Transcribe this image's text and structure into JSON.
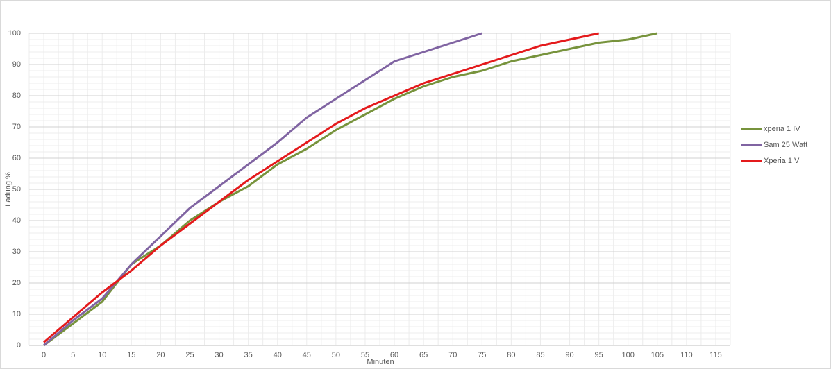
{
  "chart_data": {
    "type": "line",
    "x_label": "Minuten",
    "y_label": "Ladung %",
    "categories": [
      "0",
      "5",
      "10",
      "15",
      "20",
      "25",
      "30",
      "35",
      "40",
      "45",
      "50",
      "55",
      "60",
      "65",
      "70",
      "75",
      "80",
      "85",
      "90",
      "95",
      "100",
      "105",
      "110",
      "115"
    ],
    "series": [
      {
        "name": "xperia 1 IV",
        "color": "#77933c",
        "values": [
          0,
          7,
          14,
          26,
          32,
          40,
          46,
          51,
          58,
          63,
          69,
          74,
          79,
          83,
          86,
          88,
          91,
          93,
          95,
          97,
          98,
          100,
          null,
          null
        ]
      },
      {
        "name": "Sam 25 Watt",
        "color": "#8064a2",
        "values": [
          0,
          8,
          15,
          26,
          35,
          44,
          51,
          58,
          65,
          73,
          79,
          85,
          91,
          94,
          97,
          100,
          null,
          null,
          null,
          null,
          null,
          null,
          null,
          null
        ]
      },
      {
        "name": "Xperia 1 V",
        "color": "#e41a1c",
        "values": [
          1,
          9,
          17,
          24,
          32,
          39,
          46,
          53,
          59,
          65,
          71,
          76,
          80,
          84,
          87,
          90,
          93,
          96,
          98,
          100,
          null,
          null,
          null,
          null
        ]
      }
    ],
    "ylim": [
      0,
      100
    ],
    "yticks": [
      0,
      10,
      20,
      30,
      40,
      50,
      60,
      70,
      80,
      90,
      100
    ],
    "grid": true,
    "legend": "right"
  }
}
